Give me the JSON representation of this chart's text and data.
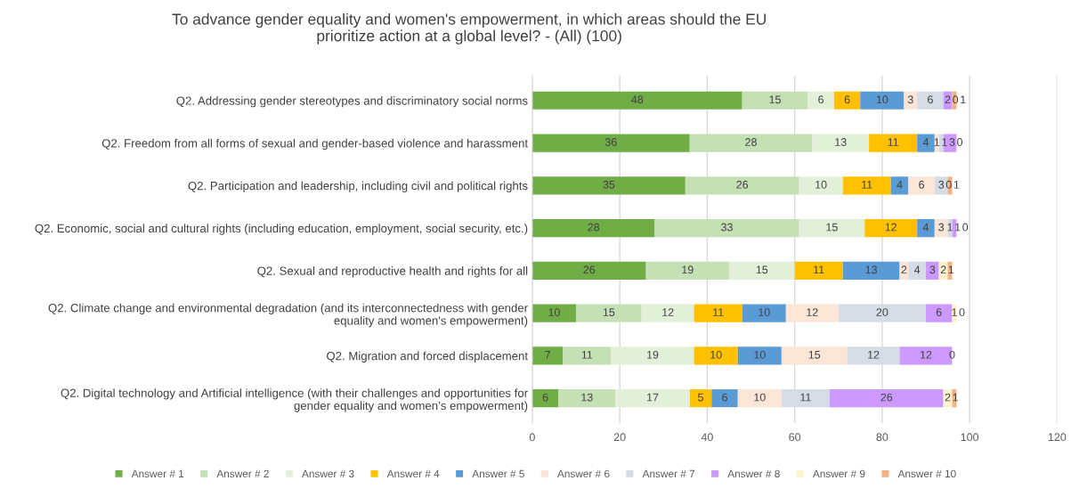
{
  "chart_data": {
    "type": "bar",
    "orientation": "horizontal",
    "stacked": true,
    "data_labels": true,
    "title": "To advance gender equality and women's empowerment, in which areas should the EU\nprioritize action at a global level? - (All) (100)",
    "categories": [
      "Q2. Addressing gender stereotypes and discriminatory social norms",
      "Q2. Freedom from all forms of sexual and gender-based violence and harassment",
      "Q2. Participation and leadership, including civil and political rights",
      "Q2. Economic, social and cultural rights (including education, employment, social security, etc.)",
      "Q2. Sexual and reproductive health and rights for all",
      "Q2. Climate change and environmental degradation (and its interconnectedness with gender\nequality and women's empowerment)",
      "Q2. Migration and forced displacement",
      "Q2. Digital technology and Artificial intelligence (with their challenges and opportunities for\ngender equality and women’s empowerment)"
    ],
    "series": [
      {
        "name": "Answer # 1",
        "color": "#70ad47",
        "values": [
          48,
          36,
          35,
          28,
          26,
          10,
          7,
          6
        ]
      },
      {
        "name": "Answer # 2",
        "color": "#c5e0b4",
        "values": [
          15,
          28,
          26,
          33,
          19,
          15,
          11,
          13
        ]
      },
      {
        "name": "Answer # 3",
        "color": "#e2f0d9",
        "values": [
          6,
          13,
          10,
          15,
          15,
          12,
          19,
          17
        ]
      },
      {
        "name": "Answer # 4",
        "color": "#ffc000",
        "values": [
          6,
          11,
          11,
          12,
          11,
          11,
          10,
          5
        ]
      },
      {
        "name": "Answer # 5",
        "color": "#5b9bd5",
        "values": [
          10,
          4,
          4,
          4,
          13,
          10,
          10,
          6
        ]
      },
      {
        "name": "Answer # 6",
        "color": "#fbe5d6",
        "values": [
          3,
          1,
          6,
          3,
          2,
          12,
          15,
          10
        ]
      },
      {
        "name": "Answer # 7",
        "color": "#d6dce5",
        "values": [
          6,
          1,
          3,
          1,
          4,
          20,
          12,
          11
        ]
      },
      {
        "name": "Answer # 8",
        "color": "#cc99ff",
        "values": [
          2,
          3,
          0,
          1,
          3,
          6,
          12,
          26
        ]
      },
      {
        "name": "Answer # 9",
        "color": "#fff2cc",
        "values": [
          0,
          0,
          null,
          0,
          2,
          1,
          0,
          2
        ]
      },
      {
        "name": "Answer # 10",
        "color": "#f4b183",
        "values": [
          1,
          null,
          1,
          null,
          1,
          0,
          null,
          1
        ]
      }
    ],
    "xlim": [
      0,
      120
    ],
    "xticks": [
      0,
      20,
      40,
      60,
      80,
      100,
      120
    ],
    "grid": "x",
    "legend": "bottom"
  }
}
